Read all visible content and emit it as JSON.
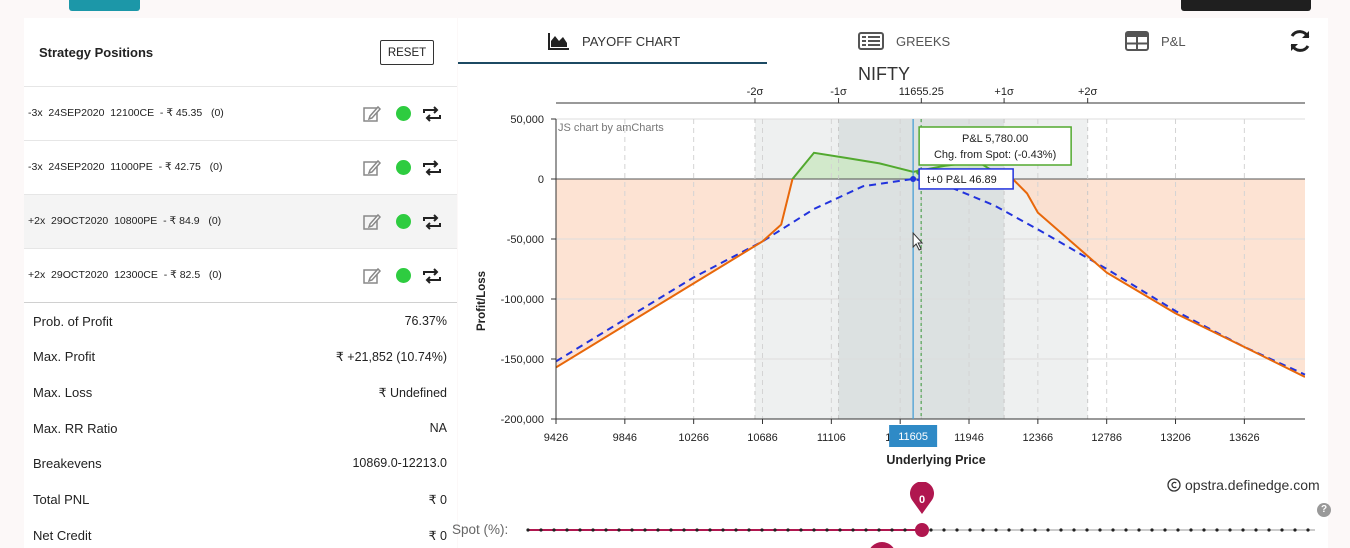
{
  "left_panel": {
    "title": "Strategy Positions",
    "reset_label": "RESET",
    "positions": [
      {
        "text": "-3x  24SEP2020  12100CE  - ₹ 45.35   (0)"
      },
      {
        "text": "-3x  24SEP2020  11000PE  - ₹ 42.75   (0)"
      },
      {
        "text": "+2x  29OCT2020  10800PE  - ₹ 84.9   (0)"
      },
      {
        "text": "+2x  29OCT2020  12300CE  - ₹ 82.5   (0)"
      }
    ],
    "stats": [
      {
        "label": "Prob. of Profit",
        "value": "76.37%"
      },
      {
        "label": "Max. Profit",
        "value": "₹ +21,852 (10.74%)"
      },
      {
        "label": "Max. Loss",
        "value": "₹ Undefined"
      },
      {
        "label": "Max. RR Ratio",
        "value": "NA"
      },
      {
        "label": "Breakevens",
        "value": "10869.0-12213.0"
      },
      {
        "label": "Total PNL",
        "value": "₹ 0"
      },
      {
        "label": "Net Credit",
        "value": "₹ 0"
      }
    ],
    "icons": {
      "edit": "edit-icon",
      "status": "status-dot-icon",
      "switch": "swap-icon"
    },
    "status_color": "#2ecc40"
  },
  "tabs": [
    {
      "label": "PAYOFF CHART",
      "icon": "area-chart-icon",
      "active": true
    },
    {
      "label": "GREEKS",
      "icon": "list-icon",
      "active": false
    },
    {
      "label": "P&L",
      "icon": "table-icon",
      "active": false
    }
  ],
  "chart_title": "NIFTY",
  "chart_data": {
    "type": "line",
    "title": "NIFTY",
    "xlabel": "Underlying Price",
    "ylabel": "Profit/Loss",
    "xlim": [
      9426,
      13996
    ],
    "ylim": [
      -200000,
      50000
    ],
    "x_ticks": [
      9426,
      9846,
      10266,
      10686,
      11106,
      11526,
      11946,
      12366,
      12786,
      13206,
      13626
    ],
    "y_ticks": [
      50000,
      0,
      -50000,
      -100000,
      -150000,
      -200000
    ],
    "y_tick_labels": [
      "50,000",
      "0",
      "-50,000",
      "-100,000",
      "-150,000",
      "-200,000"
    ],
    "sigma_labels": [
      {
        "label": "-2σ",
        "x": 10640
      },
      {
        "label": "-1σ",
        "x": 11150
      },
      {
        "label": "11655.25",
        "x": 11655
      },
      {
        "label": "+1σ",
        "x": 12160
      },
      {
        "label": "+2σ",
        "x": 12670
      }
    ],
    "watermark": "JS chart by amCharts",
    "series": [
      {
        "kind": "expiry",
        "color": "#e8670a",
        "x": [
          9426,
          9846,
          10266,
          10686,
          10800,
          10869,
          11000,
          11200,
          11400,
          11605,
          11800,
          12000,
          12100,
          12213,
          12300,
          12366,
          12786,
          13206,
          13626,
          13996
        ],
        "y": [
          -157000,
          -122000,
          -87000,
          -52000,
          -38000,
          0,
          21852,
          17500,
          13000,
          6000,
          11000,
          14500,
          6000,
          0,
          -12000,
          -28000,
          -78000,
          -112000,
          -140000,
          -165000
        ]
      },
      {
        "kind": "t+0",
        "color": "#2233dd",
        "x": [
          9426,
          9846,
          10266,
          10686,
          11000,
          11300,
          11605,
          11800,
          12100,
          12366,
          12786,
          13206,
          13626,
          13996
        ],
        "y": [
          -152000,
          -117000,
          -82000,
          -52000,
          -25000,
          -6000,
          47,
          -5000,
          -22000,
          -42000,
          -75000,
          -110000,
          -140000,
          -163000
        ]
      }
    ],
    "spot_price": 11605,
    "spot_tooltip": "t+0 P&L 46.89",
    "hover_tooltip": {
      "line1": "P&L 5,780.00",
      "line2": "Chg. from Spot: (-0.43%)"
    },
    "bands": [
      {
        "from": 10640,
        "to": 12670,
        "fill": "#eef0f0"
      },
      {
        "from": 11150,
        "to": 12160,
        "fill": "#dce1e1"
      }
    ],
    "profit_fill": "#cde8c4",
    "loss_fill": "#fcdcc8"
  },
  "credit": "opstra.definedge.com",
  "slider": {
    "label": "Spot (%):",
    "value": "0",
    "marker_color": "#b0174f"
  }
}
